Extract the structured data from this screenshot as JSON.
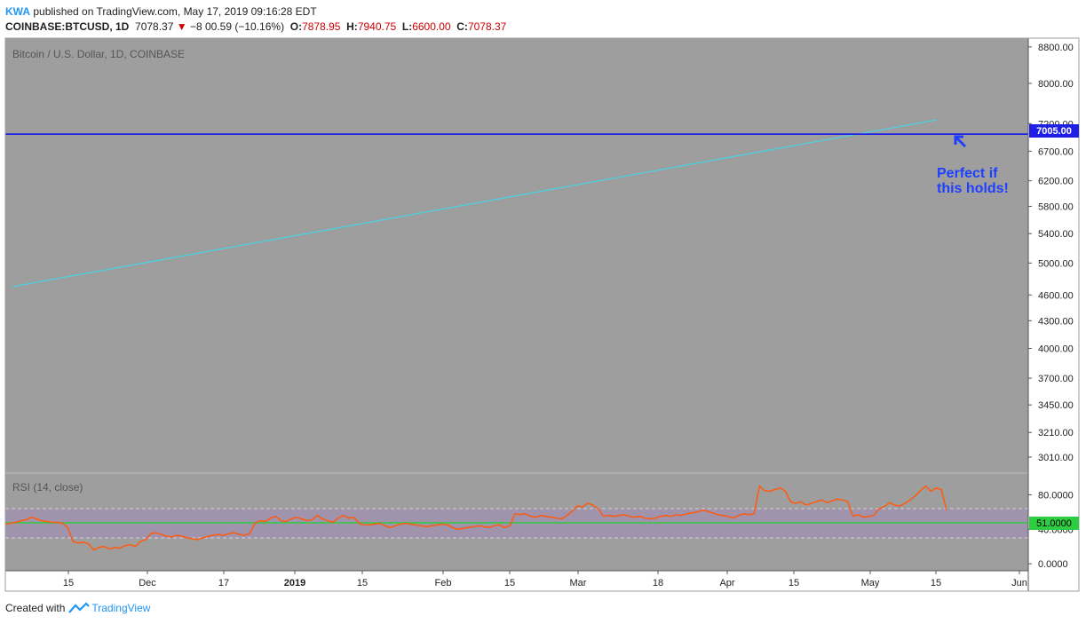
{
  "header": {
    "user": "KWA",
    "published": "published on TradingView.com, May 17, 2019 09:16:28 EDT",
    "symbol": "COINBASE:BTCUSD, 1D",
    "last": "7078.37",
    "change": "−8 00.59 (−10.16%)",
    "o_label": "O:",
    "o_val": "7878.95",
    "h_label": "H:",
    "h_val": "7940.75",
    "l_label": "L:",
    "l_val": "6600.00",
    "c_label": "C:",
    "c_val": "7078.37"
  },
  "footer": {
    "created": "Created with",
    "brand": "TradingView"
  },
  "colors": {
    "bg": "#9e9e9e",
    "up": "#2ee62e",
    "down": "#d41c1c",
    "hline": "#1f1fe6",
    "trend": "#4dd0e1",
    "rsi": "#ff5a0f",
    "rsi_mid": "#2ecc40",
    "band": "#a08fb0",
    "annot": "#1f3fff"
  },
  "chart_data": [
    {
      "type": "candlestick",
      "title": "Bitcoin / U.S. Dollar, 1D, COINBASE",
      "y_ticks": [
        "8800.00",
        "8000.00",
        "7200.00",
        "6700.00",
        "6200.00",
        "5800.00",
        "5400.00",
        "5000.00",
        "4600.00",
        "4300.00",
        "4000.00",
        "3700.00",
        "3450.00",
        "3210.00",
        "3010.00"
      ],
      "x_ticks": [
        "15",
        "Dec",
        "17",
        "2019",
        "15",
        "Feb",
        "15",
        "Mar",
        "18",
        "Apr",
        "15",
        "May",
        "15",
        "Jun"
      ],
      "scale": "log",
      "ylim": [
        2920,
        8900
      ],
      "horizontal_line": {
        "value": 7005.0,
        "label": "7005.00"
      },
      "trendline": {
        "start": {
          "date": "2018-11-01",
          "value": 4700
        },
        "end": {
          "date": "2019-06-02",
          "value": 7270
        }
      },
      "annotation": {
        "line1": "Perfect if",
        "line2": "this holds!"
      },
      "candles": []
    },
    {
      "type": "line",
      "title": "RSI (14, close)",
      "y_ticks": [
        "80.0000",
        "40.0000",
        "0.0000"
      ],
      "ylim": [
        -5,
        100
      ],
      "bands": [
        70,
        30
      ],
      "midline": {
        "value": 51.0,
        "label": "51.0000"
      },
      "values": [
        46,
        47,
        48,
        50,
        51,
        54,
        52,
        50,
        49,
        48,
        48,
        47,
        42,
        26,
        24,
        25,
        23,
        16,
        19,
        20,
        17,
        19,
        18,
        21,
        22,
        20,
        26,
        28,
        35,
        36,
        34,
        32,
        31,
        33,
        32,
        30,
        29,
        28,
        30,
        32,
        33,
        34,
        33,
        35,
        36,
        34,
        33,
        35,
        47,
        50,
        49,
        53,
        55,
        50,
        49,
        52,
        54,
        52,
        50,
        51,
        56,
        52,
        50,
        48,
        53,
        56,
        53,
        54,
        47,
        45,
        45,
        46,
        47,
        44,
        42,
        44,
        46,
        47,
        46,
        45,
        44,
        43,
        44,
        45,
        46,
        45,
        42,
        40,
        41,
        42,
        43,
        44,
        43,
        42,
        44,
        45,
        42,
        44,
        58,
        57,
        58,
        55,
        54,
        56,
        55,
        54,
        53,
        52,
        56,
        61,
        67,
        66,
        70,
        68,
        64,
        55,
        56,
        55,
        56,
        57,
        55,
        54,
        55,
        53,
        52,
        53,
        55,
        56,
        55,
        57,
        56,
        58,
        59,
        60,
        62,
        61,
        59,
        57,
        56,
        55,
        53,
        56,
        58,
        57,
        58,
        90,
        85,
        84,
        86,
        88,
        84,
        72,
        70,
        72,
        68,
        70,
        72,
        74,
        71,
        73,
        75,
        74,
        72,
        55,
        57,
        54,
        55,
        56,
        64,
        66,
        71,
        68,
        67,
        70,
        74,
        79,
        85,
        90,
        84,
        88,
        86,
        62
      ]
    }
  ]
}
